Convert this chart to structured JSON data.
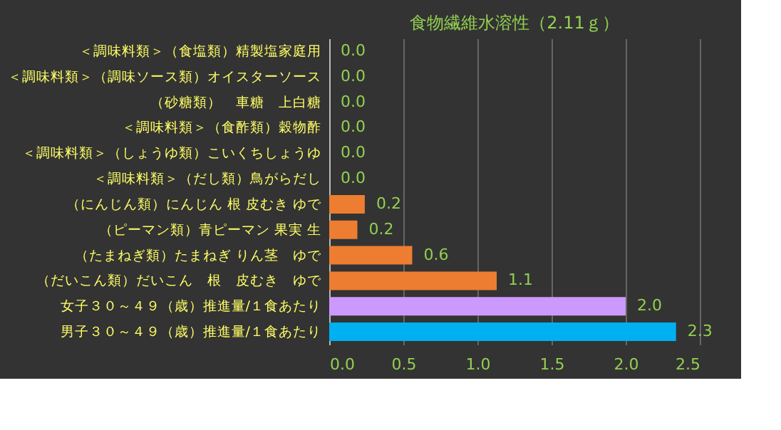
{
  "chart_data": {
    "type": "bar",
    "orientation": "horizontal",
    "title": "食物繊維水溶性（2.11ｇ）",
    "categories": [
      "＜調味料類＞（食塩類）精製塩家庭用",
      "＜調味料類＞（調味ソース類）オイスターソース",
      "（砂糖類）　車糖　上白糖",
      "＜調味料類＞（食酢類）穀物酢",
      "＜調味料類＞（しょうゆ類）こいくちしょうゆ",
      "＜調味料類＞（だし類）鳥がらだし",
      "（にんじん類）にんじん 根 皮むき ゆで",
      "（ピーマン類）青ピーマン 果実 生",
      "（たまねぎ類）たまねぎ りん茎　ゆで",
      "（だいこん類）だいこん　根　皮むき　ゆで",
      "女子３０～４９（歳）推進量/１食あたり",
      "男子３０～４９（歳）推進量/１食あたり"
    ],
    "values": [
      0,
      0,
      0,
      0,
      0,
      0,
      0.24,
      0.19,
      0.56,
      1.13,
      2.0,
      2.34
    ],
    "value_labels": [
      "0.0",
      "0.0",
      "0.0",
      "0.0",
      "0.0",
      "0.0",
      "0.2",
      "0.2",
      "0.6",
      "1.1",
      "2.0",
      "2.3"
    ],
    "colors": [
      "#ed7d31",
      "#ed7d31",
      "#ed7d31",
      "#ed7d31",
      "#ed7d31",
      "#ed7d31",
      "#ed7d31",
      "#ed7d31",
      "#ed7d31",
      "#ed7d31",
      "#cc99ff",
      "#00b0f0"
    ],
    "xlim": [
      0,
      2.5
    ],
    "xticks": [
      {
        "value": 0,
        "label": "0.0"
      },
      0.5,
      {
        "value": 1,
        "label": "1.0"
      },
      1.5,
      {
        "value": 2,
        "label": "2.0"
      },
      2.5
    ],
    "grid": "x"
  }
}
